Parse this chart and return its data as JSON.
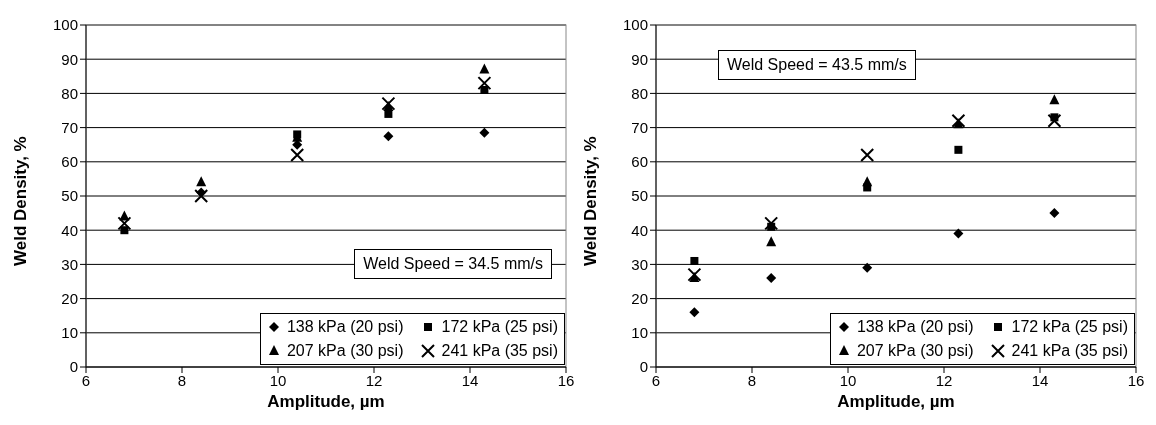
{
  "chart_data": [
    {
      "type": "scatter",
      "xlabel": "Amplitude, µm",
      "ylabel": "Weld Density, %",
      "xlim": [
        6,
        16
      ],
      "xticks": [
        6,
        8,
        10,
        12,
        14,
        16
      ],
      "ylim": [
        0,
        100
      ],
      "yticks": [
        0,
        10,
        20,
        30,
        40,
        50,
        60,
        70,
        80,
        90,
        100
      ],
      "grid": "y",
      "legend": "bottom right",
      "annotations": [
        "Weld Speed = 34.5 mm/s"
      ],
      "x": [
        6.8,
        8.4,
        10.4,
        12.3,
        14.3
      ],
      "series": [
        {
          "name": "138 kPa (20 psi)",
          "color": "#000000",
          "marker": "diamond",
          "values": [
            null,
            51,
            65,
            67.5,
            68.5
          ]
        },
        {
          "name": "172 kPa (25 psi)",
          "color": "#000000",
          "marker": "square",
          "values": [
            40,
            null,
            68,
            74,
            81
          ]
        },
        {
          "name": "207 kPa (30 psi)",
          "color": "#000000",
          "marker": "triangle",
          "values": [
            44,
            54,
            67,
            76,
            87
          ]
        },
        {
          "name": "241 kPa (35 psi)",
          "color": "#000000",
          "marker": "cross",
          "values": [
            42,
            50,
            62,
            77,
            83
          ]
        }
      ]
    },
    {
      "type": "scatter",
      "xlabel": "Amplitude, µm",
      "ylabel": "Weld Density, %",
      "xlim": [
        6,
        16
      ],
      "xticks": [
        6,
        8,
        10,
        12,
        14,
        16
      ],
      "ylim": [
        0,
        100
      ],
      "yticks": [
        0,
        10,
        20,
        30,
        40,
        50,
        60,
        70,
        80,
        90,
        100
      ],
      "grid": "y",
      "legend": "bottom right",
      "annotations": [
        "Weld Speed = 43.5 mm/s"
      ],
      "x": [
        6.8,
        8.4,
        10.4,
        12.3,
        14.3
      ],
      "series": [
        {
          "name": "138 kPa (20 psi)",
          "color": "#000000",
          "marker": "diamond",
          "values": [
            16,
            26,
            29,
            39,
            45
          ]
        },
        {
          "name": "172 kPa (25 psi)",
          "color": "#000000",
          "marker": "square",
          "values": [
            31,
            41,
            52.5,
            63.5,
            73
          ]
        },
        {
          "name": "207 kPa (30 psi)",
          "color": "#000000",
          "marker": "triangle",
          "values": [
            26,
            36.5,
            54,
            71,
            78
          ]
        },
        {
          "name": "241 kPa (35 psi)",
          "color": "#000000",
          "marker": "cross",
          "values": [
            27,
            42,
            62,
            72,
            72
          ]
        }
      ]
    }
  ]
}
